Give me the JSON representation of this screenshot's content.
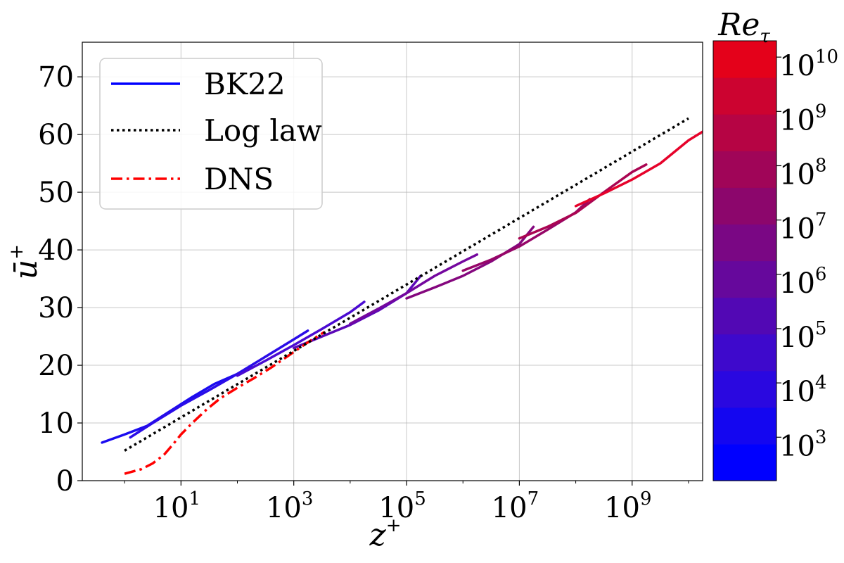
{
  "chart_data": {
    "type": "line",
    "title": "",
    "xlabel": "z",
    "xlabel_sup": "+",
    "ylabel": "ū",
    "ylabel_sup": "+",
    "xscale": "log",
    "xlim_exp": [
      -0.75,
      10.25
    ],
    "ylim": [
      0,
      76
    ],
    "grid": true,
    "legend_position": "top-left",
    "x_ticks": [
      {
        "base": "10",
        "exp": "1",
        "value_exp": 1
      },
      {
        "base": "10",
        "exp": "3",
        "value_exp": 3
      },
      {
        "base": "10",
        "exp": "5",
        "value_exp": 5
      },
      {
        "base": "10",
        "exp": "7",
        "value_exp": 7
      },
      {
        "base": "10",
        "exp": "9",
        "value_exp": 9
      }
    ],
    "y_ticks": [
      "0",
      "10",
      "20",
      "30",
      "40",
      "50",
      "60",
      "70"
    ],
    "legend": [
      {
        "label": "BK22",
        "style": "solid",
        "color": "#0000ff"
      },
      {
        "label": "Log law",
        "style": "dotted",
        "color": "#000000"
      },
      {
        "label": "DNS",
        "style": "dashdot",
        "color": "#ff0000"
      }
    ],
    "log_law": {
      "name": "Log law",
      "color": "#000000",
      "points": [
        [
          0,
          5.2
        ],
        [
          10,
          62.8
        ]
      ]
    },
    "dns": {
      "name": "DNS",
      "color": "#ff0000",
      "points": [
        [
          0,
          1.2
        ],
        [
          0.3,
          2.0
        ],
        [
          0.5,
          3.0
        ],
        [
          0.7,
          4.5
        ],
        [
          0.85,
          6.2
        ],
        [
          1.0,
          8.0
        ],
        [
          1.2,
          10.0
        ],
        [
          1.45,
          12.3
        ],
        [
          1.7,
          14.3
        ],
        [
          2.0,
          16.1
        ],
        [
          2.3,
          17.8
        ],
        [
          2.6,
          19.6
        ],
        [
          3.0,
          22.3
        ],
        [
          3.3,
          24.3
        ],
        [
          3.55,
          25.8
        ]
      ]
    },
    "bk22_series": [
      {
        "color": "#1a0bf0",
        "points": [
          [
            -0.4,
            6.6
          ],
          [
            0,
            8.0
          ],
          [
            0.4,
            9.5
          ],
          [
            0.8,
            12.0
          ],
          [
            1.2,
            14.5
          ],
          [
            1.6,
            16.8
          ],
          [
            2.0,
            18.5
          ],
          [
            2.25,
            19.8
          ]
        ]
      },
      {
        "color": "#2a0ce8",
        "points": [
          [
            0.1,
            7.5
          ],
          [
            0.5,
            10.0
          ],
          [
            1.0,
            13.0
          ],
          [
            1.5,
            15.7
          ],
          [
            2.0,
            18.5
          ],
          [
            2.5,
            21.5
          ],
          [
            3.0,
            24.5
          ],
          [
            3.25,
            26.0
          ]
        ]
      },
      {
        "color": "#4a0ad2",
        "points": [
          [
            2.0,
            18.2
          ],
          [
            2.5,
            20.8
          ],
          [
            3.0,
            23.5
          ],
          [
            3.5,
            26.3
          ],
          [
            4.0,
            29.2
          ],
          [
            4.25,
            31.0
          ]
        ]
      },
      {
        "color": "#5c08b8",
        "points": [
          [
            3.0,
            23.0
          ],
          [
            3.5,
            25.0
          ],
          [
            4.0,
            27.0
          ],
          [
            4.5,
            29.5
          ],
          [
            5.0,
            32.5
          ],
          [
            5.25,
            35.5
          ]
        ]
      },
      {
        "color": "#74079e",
        "points": [
          [
            4.0,
            27.2
          ],
          [
            4.5,
            29.8
          ],
          [
            5.0,
            32.5
          ],
          [
            5.5,
            35.5
          ],
          [
            6.0,
            38.0
          ],
          [
            6.25,
            39.2
          ]
        ]
      },
      {
        "color": "#84077e",
        "points": [
          [
            5.0,
            31.6
          ],
          [
            5.5,
            33.5
          ],
          [
            6.0,
            35.5
          ],
          [
            6.5,
            38.0
          ],
          [
            7.0,
            41.0
          ],
          [
            7.25,
            44.0
          ]
        ]
      },
      {
        "color": "#960668",
        "points": [
          [
            6.0,
            36.4
          ],
          [
            6.5,
            38.3
          ],
          [
            7.0,
            40.6
          ],
          [
            7.5,
            43.5
          ],
          [
            8.0,
            46.5
          ],
          [
            8.25,
            48.8
          ]
        ]
      },
      {
        "color": "#aa0552",
        "points": [
          [
            7.0,
            42.0
          ],
          [
            7.5,
            44.0
          ],
          [
            8.0,
            46.4
          ],
          [
            8.5,
            50.0
          ],
          [
            9.0,
            53.5
          ],
          [
            9.25,
            54.8
          ]
        ]
      },
      {
        "color": "#e6022a",
        "points": [
          [
            8.0,
            47.6
          ],
          [
            8.5,
            49.8
          ],
          [
            9.0,
            52.2
          ],
          [
            9.5,
            55.0
          ],
          [
            10.0,
            59.0
          ],
          [
            10.25,
            60.5
          ]
        ]
      }
    ],
    "colorbar": {
      "title": "Re",
      "title_sub": "τ",
      "scale": "log",
      "range_exp": [
        2.2,
        10.3
      ],
      "colors": [
        "#0000ff",
        "#1406f0",
        "#2a08e0",
        "#3e09cc",
        "#5208b4",
        "#66089c",
        "#7a0784",
        "#8c066c",
        "#a00558",
        "#b60444",
        "#cc0330",
        "#e4011a"
      ],
      "ticks": [
        {
          "base": "10",
          "exp": "3",
          "value_exp": 3
        },
        {
          "base": "10",
          "exp": "4",
          "value_exp": 4
        },
        {
          "base": "10",
          "exp": "5",
          "value_exp": 5
        },
        {
          "base": "10",
          "exp": "6",
          "value_exp": 6
        },
        {
          "base": "10",
          "exp": "7",
          "value_exp": 7
        },
        {
          "base": "10",
          "exp": "8",
          "value_exp": 8
        },
        {
          "base": "10",
          "exp": "9",
          "value_exp": 9
        },
        {
          "base": "10",
          "exp": "10",
          "value_exp": 10
        }
      ]
    }
  }
}
